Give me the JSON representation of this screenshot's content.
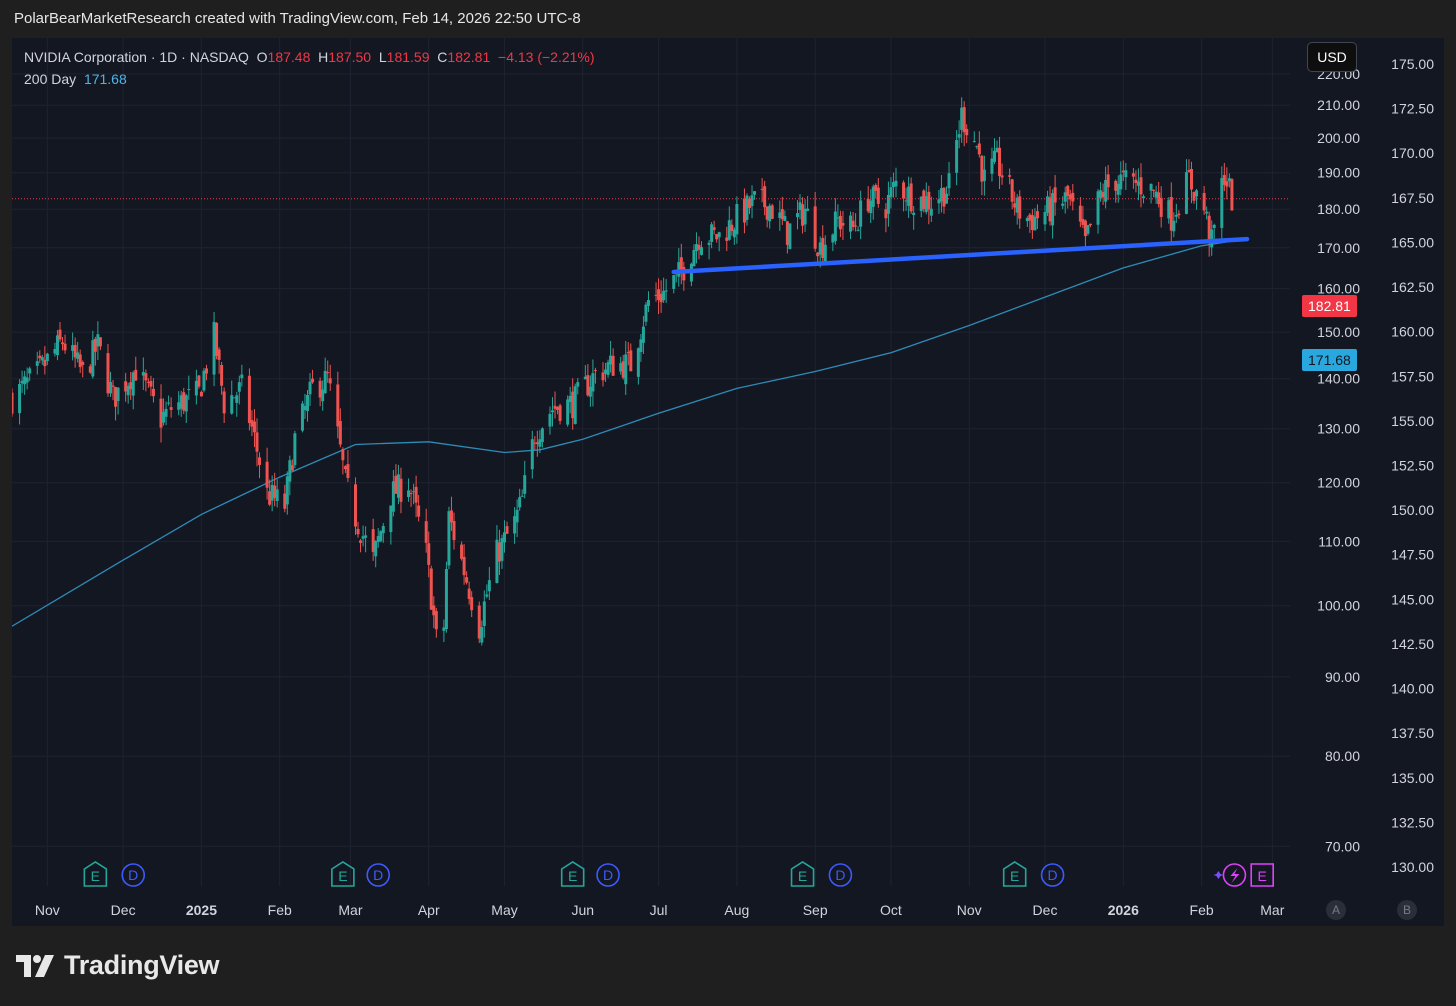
{
  "header": {
    "credit": "PolarBearMarketResearch created with TradingView.com, Feb 14, 2026 22:50 UTC-8"
  },
  "legend": {
    "symbol": "NVIDIA Corporation · 1D · NASDAQ",
    "open_label": "O",
    "open": "187.48",
    "high_label": "H",
    "high": "187.50",
    "low_label": "L",
    "low": "181.59",
    "close_label": "C",
    "close": "182.81",
    "change": "−4.13 (−2.21%)",
    "ma_name": "200 Day",
    "ma_value": "171.68"
  },
  "currency": "USD",
  "price_tags": {
    "last": "182.81",
    "ma": "171.68"
  },
  "axis_buttons": {
    "auto": "A",
    "brand": "B"
  },
  "brand": {
    "name": "TradingView"
  },
  "colors": {
    "background": "#131722",
    "up": "#26a69a",
    "down": "#ef5350",
    "ma_line": "#2e8bb8",
    "trendline": "#2962ff",
    "price_line": "#f23645",
    "earnings": "#26a69a",
    "dividend": "#3d5afe",
    "upcoming": "#e040fb"
  },
  "chart_data": {
    "type": "candlestick",
    "title": "NVIDIA Corporation · 1D · NASDAQ",
    "scale": "logarithmic",
    "grid": true,
    "x_tick_labels": [
      "Nov",
      "Dec",
      "2025",
      "Feb",
      "Mar",
      "Apr",
      "May",
      "Jun",
      "Jul",
      "Aug",
      "Sep",
      "Oct",
      "Nov",
      "Dec",
      "2026",
      "Feb",
      "Mar"
    ],
    "x_ticks": [
      "2024-11-01",
      "2024-12-01",
      "2025-01-01",
      "2025-02-01",
      "2025-03-01",
      "2025-04-01",
      "2025-05-01",
      "2025-06-01",
      "2025-07-01",
      "2025-08-01",
      "2025-09-01",
      "2025-10-01",
      "2025-11-01",
      "2025-12-01",
      "2026-01-01",
      "2026-02-01",
      "2026-03-01"
    ],
    "x_range": [
      "2024-10-18",
      "2026-03-08"
    ],
    "y_range": [
      66,
      232
    ],
    "y_ticks_main": [
      "70.00",
      "80.00",
      "90.00",
      "100.00",
      "110.00",
      "120.00",
      "130.00",
      "140.00",
      "150.00",
      "160.00",
      "170.00",
      "180.00",
      "190.00",
      "200.00",
      "210.00",
      "220.00"
    ],
    "y_ticks_secondary": [
      "130.00",
      "132.50",
      "135.00",
      "137.50",
      "140.00",
      "142.50",
      "145.00",
      "147.50",
      "150.00",
      "152.50",
      "155.00",
      "157.50",
      "160.00",
      "162.50",
      "165.00",
      "167.50",
      "170.00",
      "172.50",
      "175.00"
    ],
    "last_price": 182.81,
    "close_path": [
      [
        "2024-10-18",
        136
      ],
      [
        "2024-10-28",
        141
      ],
      [
        "2024-11-07",
        148
      ],
      [
        "2024-11-15",
        141
      ],
      [
        "2024-11-21",
        147
      ],
      [
        "2024-11-27",
        136
      ],
      [
        "2024-12-06",
        142
      ],
      [
        "2024-12-16",
        132
      ],
      [
        "2024-12-20",
        134
      ],
      [
        "2024-12-31",
        137
      ],
      [
        "2025-01-06",
        149
      ],
      [
        "2025-01-10",
        135
      ],
      [
        "2025-01-17",
        138
      ],
      [
        "2025-01-27",
        118
      ],
      [
        "2025-02-03",
        116
      ],
      [
        "2025-02-07",
        128
      ],
      [
        "2025-02-14",
        138
      ],
      [
        "2025-02-20",
        140
      ],
      [
        "2025-02-27",
        120
      ],
      [
        "2025-03-03",
        114
      ],
      [
        "2025-03-10",
        107
      ],
      [
        "2025-03-17",
        118
      ],
      [
        "2025-03-24",
        120
      ],
      [
        "2025-03-31",
        108
      ],
      [
        "2025-04-04",
        95
      ],
      [
        "2025-04-07",
        97
      ],
      [
        "2025-04-09",
        114
      ],
      [
        "2025-04-16",
        104
      ],
      [
        "2025-04-21",
        97
      ],
      [
        "2025-04-28",
        108
      ],
      [
        "2025-05-05",
        113
      ],
      [
        "2025-05-08",
        117
      ],
      [
        "2025-05-13",
        129
      ],
      [
        "2025-05-20",
        134
      ],
      [
        "2025-05-28",
        135
      ],
      [
        "2025-06-06",
        141
      ],
      [
        "2025-06-13",
        143
      ],
      [
        "2025-06-20",
        143
      ],
      [
        "2025-06-27",
        157
      ],
      [
        "2025-07-03",
        159
      ],
      [
        "2025-07-10",
        164
      ],
      [
        "2025-07-17",
        173
      ],
      [
        "2025-07-25",
        173
      ],
      [
        "2025-07-31",
        177
      ],
      [
        "2025-08-08",
        182
      ],
      [
        "2025-08-14",
        181
      ],
      [
        "2025-08-21",
        174
      ],
      [
        "2025-08-28",
        180
      ],
      [
        "2025-09-03",
        170
      ],
      [
        "2025-09-10",
        177
      ],
      [
        "2025-09-16",
        175
      ],
      [
        "2025-09-22",
        183
      ],
      [
        "2025-09-29",
        181
      ],
      [
        "2025-10-03",
        187
      ],
      [
        "2025-10-10",
        183
      ],
      [
        "2025-10-17",
        182
      ],
      [
        "2025-10-24",
        186
      ],
      [
        "2025-10-29",
        207
      ],
      [
        "2025-11-04",
        198
      ],
      [
        "2025-11-07",
        188
      ],
      [
        "2025-11-12",
        193
      ],
      [
        "2025-11-20",
        180
      ],
      [
        "2025-11-25",
        177
      ],
      [
        "2025-12-03",
        180
      ],
      [
        "2025-12-10",
        183
      ],
      [
        "2025-12-17",
        171
      ],
      [
        "2025-12-23",
        184
      ],
      [
        "2025-12-29",
        188
      ],
      [
        "2026-01-06",
        187
      ],
      [
        "2026-01-13",
        185
      ],
      [
        "2026-01-20",
        178
      ],
      [
        "2026-01-27",
        188
      ],
      [
        "2026-02-02",
        180
      ],
      [
        "2026-02-05",
        171
      ],
      [
        "2026-02-10",
        190
      ],
      [
        "2026-02-13",
        182.81
      ]
    ],
    "ma_200": [
      [
        "2024-10-18",
        97
      ],
      [
        "2024-12-01",
        107
      ],
      [
        "2025-01-01",
        114.5
      ],
      [
        "2025-02-01",
        121
      ],
      [
        "2025-03-03",
        127
      ],
      [
        "2025-04-01",
        127.5
      ],
      [
        "2025-05-01",
        125.5
      ],
      [
        "2025-05-15",
        126
      ],
      [
        "2025-06-01",
        128
      ],
      [
        "2025-07-01",
        133
      ],
      [
        "2025-08-01",
        138
      ],
      [
        "2025-09-01",
        141.5
      ],
      [
        "2025-10-01",
        145.5
      ],
      [
        "2025-11-01",
        151.5
      ],
      [
        "2025-12-01",
        158
      ],
      [
        "2026-01-01",
        165
      ],
      [
        "2026-02-01",
        170.5
      ],
      [
        "2026-02-13",
        171.68
      ]
    ],
    "trendline": [
      [
        "2025-07-07",
        164
      ],
      [
        "2026-02-19",
        172.2
      ]
    ],
    "events": [
      {
        "date": "2024-11-20",
        "type": "E"
      },
      {
        "date": "2024-12-05",
        "type": "D"
      },
      {
        "date": "2025-02-26",
        "type": "E"
      },
      {
        "date": "2025-03-12",
        "type": "D"
      },
      {
        "date": "2025-05-28",
        "type": "E"
      },
      {
        "date": "2025-06-11",
        "type": "D"
      },
      {
        "date": "2025-08-27",
        "type": "E"
      },
      {
        "date": "2025-09-11",
        "type": "D"
      },
      {
        "date": "2025-11-19",
        "type": "E"
      },
      {
        "date": "2025-12-04",
        "type": "D"
      },
      {
        "date": "2026-02-14",
        "type": "split"
      },
      {
        "date": "2026-02-25",
        "type": "E-upcoming"
      }
    ]
  }
}
